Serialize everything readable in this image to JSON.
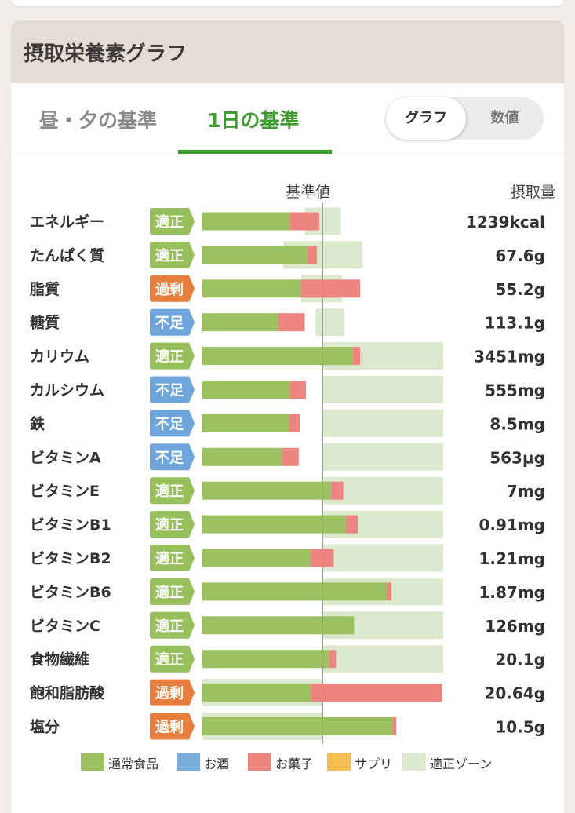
{
  "page": {
    "title": "摂取栄養素グラフ",
    "tabs": [
      {
        "label": "昼・夕の基準",
        "active": false
      },
      {
        "label": "1日の基準",
        "active": true
      }
    ],
    "toggle": {
      "graph_label": "グラフ",
      "value_label": "数値",
      "selected": "グラフ"
    },
    "column_headers": {
      "reference": "基準値",
      "intake": "摂取量"
    }
  },
  "colors": {
    "normal_food": "#9bc162",
    "alcohol": "#79aedb",
    "sweets": "#ec8580",
    "supplement": "#f5c052",
    "zone": "#dde9cf",
    "badge_ok": "#97c05c",
    "badge_low": "#6ea6dc",
    "badge_high": "#e87e3e",
    "accent": "#3f9a2f"
  },
  "chart_data": {
    "type": "bar",
    "orientation": "horizontal",
    "stacked": true,
    "unit": "percent of reference value (基準値 = 100)",
    "reference_line": 100,
    "series": [
      {
        "name": "通常食品",
        "color": "#9bc162"
      },
      {
        "name": "お酒",
        "color": "#79aedb"
      },
      {
        "name": "お菓子",
        "color": "#ec8580"
      },
      {
        "name": "サプリ",
        "color": "#f5c052"
      },
      {
        "name": "適正ゾーン",
        "color": "#dde9cf"
      }
    ],
    "rows": [
      {
        "name": "エネルギー",
        "status": "適正",
        "intake": "1239kcal",
        "food": 73,
        "sweets": 24,
        "zone": [
          85,
          115
        ]
      },
      {
        "name": "たんぱく質",
        "status": "適正",
        "intake": "67.6g",
        "food": 87,
        "sweets": 8,
        "zone": [
          67,
          133
        ]
      },
      {
        "name": "脂質",
        "status": "過剰",
        "intake": "55.2g",
        "food": 82,
        "sweets": 49,
        "zone": [
          82,
          116
        ]
      },
      {
        "name": "糖質",
        "status": "不足",
        "intake": "113.1g",
        "food": 63,
        "sweets": 22,
        "zone": [
          94,
          118
        ]
      },
      {
        "name": "カリウム",
        "status": "適正",
        "intake": "3451mg",
        "food": 125,
        "sweets": 6,
        "zone": [
          100,
          200
        ]
      },
      {
        "name": "カルシウム",
        "status": "不足",
        "intake": "555mg",
        "food": 73,
        "sweets": 13,
        "zone": [
          100,
          200
        ]
      },
      {
        "name": "鉄",
        "status": "不足",
        "intake": "8.5mg",
        "food": 72,
        "sweets": 9,
        "zone": [
          100,
          200
        ]
      },
      {
        "name": "ビタミンA",
        "status": "不足",
        "intake": "563µg",
        "food": 66,
        "sweets": 14,
        "zone": [
          100,
          200
        ]
      },
      {
        "name": "ビタミンE",
        "status": "適正",
        "intake": "7mg",
        "food": 107,
        "sweets": 10,
        "zone": [
          100,
          200
        ]
      },
      {
        "name": "ビタミンB1",
        "status": "適正",
        "intake": "0.91mg",
        "food": 119,
        "sweets": 10,
        "zone": [
          100,
          200
        ]
      },
      {
        "name": "ビタミンB2",
        "status": "適正",
        "intake": "1.21mg",
        "food": 90,
        "sweets": 19,
        "zone": [
          100,
          200
        ]
      },
      {
        "name": "ビタミンB6",
        "status": "適正",
        "intake": "1.87mg",
        "food": 153,
        "sweets": 4,
        "zone": [
          100,
          200
        ]
      },
      {
        "name": "ビタミンC",
        "status": "適正",
        "intake": "126mg",
        "food": 126,
        "sweets": 0,
        "zone": [
          100,
          200
        ]
      },
      {
        "name": "食物繊維",
        "status": "適正",
        "intake": "20.1g",
        "food": 105,
        "sweets": 6,
        "zone": [
          100,
          200
        ]
      },
      {
        "name": "飽和脂肪酸",
        "status": "過剰",
        "intake": "20.64g",
        "food": 90,
        "sweets": 109,
        "zone": [
          0,
          100
        ]
      },
      {
        "name": "塩分",
        "status": "過剰",
        "intake": "10.5g",
        "food": 158,
        "sweets": 3,
        "zone": [
          0,
          100
        ]
      }
    ]
  }
}
